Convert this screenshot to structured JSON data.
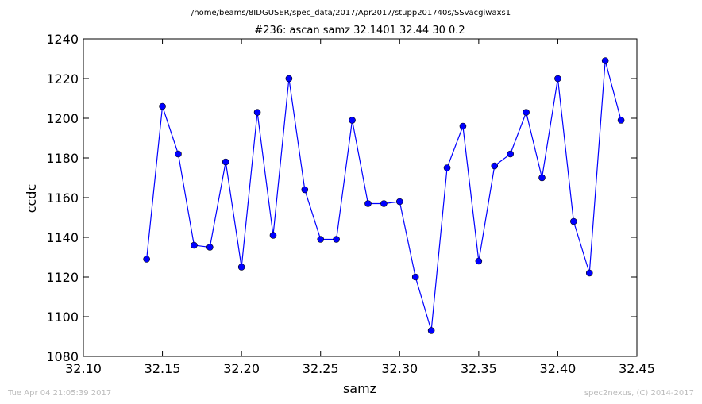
{
  "chart_data": {
    "type": "line",
    "title": "/home/beams/8IDGUSER/spec_data/2017/Apr2017/stupp201740s/SSvacgiwaxs1",
    "subtitle": "#236: ascan  samz 32.1401 32.44  30 0.2",
    "xlabel": "samz",
    "ylabel": "ccdc",
    "xlim": [
      32.1,
      32.45
    ],
    "ylim": [
      1080,
      1240
    ],
    "xticks": [
      "32.10",
      "32.15",
      "32.20",
      "32.25",
      "32.30",
      "32.35",
      "32.40",
      "32.45"
    ],
    "yticks": [
      "1080",
      "1100",
      "1120",
      "1140",
      "1160",
      "1180",
      "1200",
      "1220",
      "1240"
    ],
    "grid": false,
    "series": [
      {
        "color": "#0000ff",
        "x": [
          32.14,
          32.15,
          32.16,
          32.17,
          32.18,
          32.19,
          32.2,
          32.21,
          32.22,
          32.23,
          32.24,
          32.25,
          32.26,
          32.27,
          32.28,
          32.29,
          32.3,
          32.31,
          32.32,
          32.33,
          32.34,
          32.35,
          32.36,
          32.37,
          32.38,
          32.39,
          32.4,
          32.41,
          32.42,
          32.43,
          32.44
        ],
        "y": [
          1129,
          1206,
          1182,
          1136,
          1135,
          1178,
          1125,
          1203,
          1141,
          1220,
          1164,
          1139,
          1139,
          1199,
          1157,
          1157,
          1158,
          1120,
          1093,
          1175,
          1196,
          1128,
          1176,
          1182,
          1203,
          1170,
          1220,
          1148,
          1122,
          1229,
          1199
        ]
      }
    ]
  },
  "footer": {
    "timestamp": "Tue Apr 04 21:05:39 2017",
    "credit": "spec2nexus, (C) 2014-2017"
  }
}
